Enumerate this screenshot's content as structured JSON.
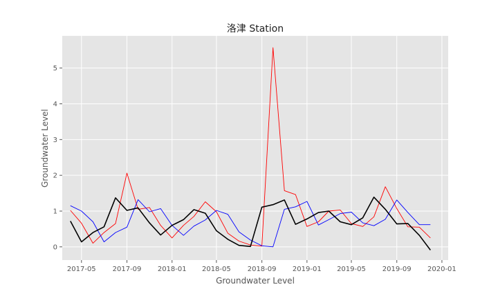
{
  "chart_data": {
    "type": "line",
    "title": "洛津 Station",
    "xlabel": "Groundwater Level",
    "ylabel": "Groundwater Level",
    "xlim": [
      "2017-03-10",
      "2020-01-18"
    ],
    "ylim": [
      -0.37,
      5.9
    ],
    "grid": true,
    "x_ticks": [
      "2017-05",
      "2017-09",
      "2018-01",
      "2018-05",
      "2018-09",
      "2019-01",
      "2019-05",
      "2019-09",
      "2020-01"
    ],
    "y_ticks": [
      0,
      1,
      2,
      3,
      4,
      5
    ],
    "x": [
      "2017-04-01",
      "2017-05-01",
      "2017-06-01",
      "2017-07-01",
      "2017-08-01",
      "2017-09-01",
      "2017-10-01",
      "2017-11-01",
      "2017-12-01",
      "2018-01-01",
      "2018-02-01",
      "2018-03-01",
      "2018-04-01",
      "2018-05-01",
      "2018-06-01",
      "2018-07-01",
      "2018-08-01",
      "2018-09-01",
      "2018-10-01",
      "2018-11-01",
      "2018-12-01",
      "2019-01-01",
      "2019-02-01",
      "2019-03-01",
      "2019-04-01",
      "2019-05-01",
      "2019-06-01",
      "2019-07-01",
      "2019-08-01",
      "2019-09-01",
      "2019-10-01",
      "2019-11-01",
      "2019-12-01"
    ],
    "series": [
      {
        "color": "#ff0000",
        "values": [
          1.02,
          0.66,
          0.1,
          0.4,
          0.65,
          2.06,
          1.05,
          1.1,
          0.6,
          0.25,
          0.6,
          0.85,
          1.26,
          0.98,
          0.38,
          0.16,
          0.05,
          0.02,
          5.57,
          1.57,
          1.46,
          0.57,
          0.7,
          1.0,
          1.03,
          0.65,
          0.57,
          0.84,
          1.68,
          1.07,
          0.56,
          0.55,
          0.25
        ]
      },
      {
        "color": "#0000ff",
        "values": [
          1.15,
          1.0,
          0.7,
          0.14,
          0.4,
          0.55,
          1.32,
          0.98,
          1.07,
          0.6,
          0.32,
          0.58,
          0.75,
          1.02,
          0.91,
          0.42,
          0.19,
          0.03,
          0.0,
          1.05,
          1.12,
          1.27,
          0.61,
          0.76,
          0.93,
          0.97,
          0.67,
          0.59,
          0.77,
          1.31,
          0.96,
          0.62,
          0.62
        ]
      },
      {
        "color": "#000000",
        "values": [
          0.72,
          0.14,
          0.4,
          0.56,
          1.37,
          1.02,
          1.09,
          0.67,
          0.33,
          0.6,
          0.76,
          1.04,
          0.94,
          0.45,
          0.21,
          0.04,
          0.01,
          1.11,
          1.18,
          1.31,
          0.63,
          0.78,
          0.96,
          1.0,
          0.7,
          0.62,
          0.81,
          1.39,
          1.05,
          0.64,
          0.65,
          0.32,
          -0.09
        ]
      }
    ]
  }
}
